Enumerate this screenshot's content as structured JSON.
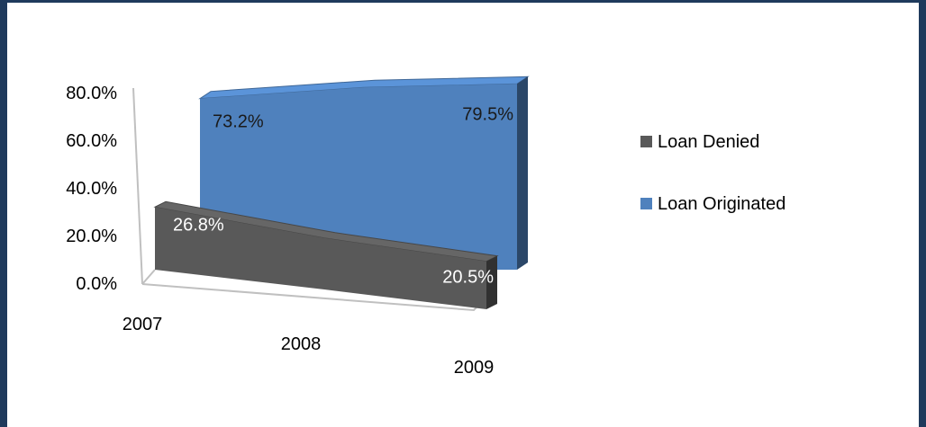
{
  "chart_data": {
    "type": "area",
    "categories": [
      "2007",
      "2008",
      "2009"
    ],
    "series": [
      {
        "name": "Loan Denied",
        "values": [
          26.8,
          22.0,
          20.5
        ],
        "color": "#595959",
        "labels": [
          "26.8%",
          "",
          "20.5%"
        ]
      },
      {
        "name": "Loan Originated",
        "values": [
          73.2,
          78.0,
          79.5
        ],
        "color": "#4f81bd",
        "labels": [
          "73.2%",
          "",
          "79.5%"
        ]
      }
    ],
    "y_ticks": [
      "0.0%",
      "20.0%",
      "40.0%",
      "60.0%",
      "80.0%"
    ],
    "ylim": [
      0,
      80
    ],
    "legend_position": "right",
    "grid": false
  }
}
